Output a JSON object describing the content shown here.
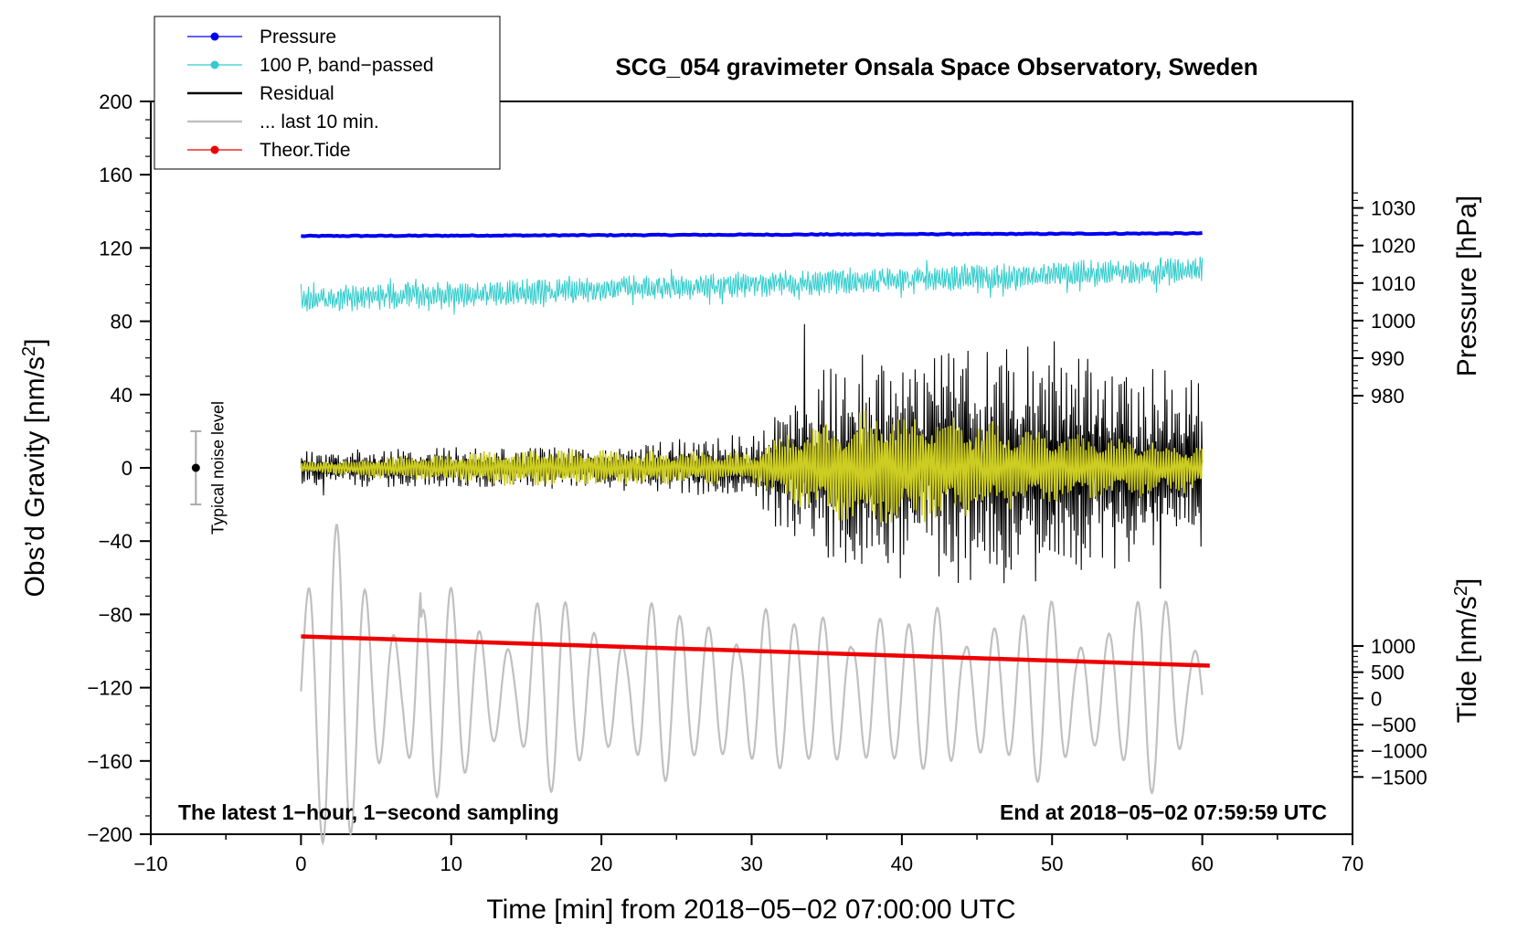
{
  "chart_data": {
    "type": "line",
    "title": "SCG_054 gravimeter Onsala Space Observatory, Sweden",
    "xlabel": "Time [min] from 2018−05−02 07:00:00 UTC",
    "ylabel_main": "Obs’d Gravity [nm/s",
    "ylabel_main_sup": "2",
    "ylabel_main_tail": "]",
    "ylabel_pressure": "Pressure [hPa]",
    "ylabel_tide": "Tide [nm/s",
    "ylabel_tide_sup": "2",
    "ylabel_tide_tail": "]",
    "xlim": [
      -10,
      70
    ],
    "ylim": [
      -200,
      200
    ],
    "x_ticks": [
      -10,
      0,
      10,
      20,
      30,
      40,
      50,
      60,
      70
    ],
    "x_tick_labels": [
      "−10",
      "0",
      "10",
      "20",
      "30",
      "40",
      "50",
      "60",
      "70"
    ],
    "y_ticks": [
      200,
      160,
      120,
      80,
      40,
      0,
      -40,
      -80,
      -120,
      -160,
      -200
    ],
    "y_tick_labels": [
      "200",
      "160",
      "120",
      "80",
      "40",
      "0",
      "−40",
      "−80",
      "−120",
      "−160",
      "−200"
    ],
    "pressure_axis": {
      "ticks": [
        1030,
        1020,
        1010,
        1000,
        990,
        980
      ],
      "tick_labels": [
        "1030",
        "1020",
        "1010",
        "1000",
        "990",
        "980"
      ],
      "value_at_gravity_0": 960.8,
      "gravity_per_hPa": 2.05
    },
    "tide_axis": {
      "ticks": [
        1000,
        500,
        0,
        -500,
        -1000,
        -1500
      ],
      "tick_labels": [
        "1000",
        "500",
        "0",
        "−500",
        "−1000",
        "−1500"
      ],
      "value_at_gravity_0": 4400,
      "gravity_per_unit": 0.0286
    },
    "legend": {
      "placement": "top-left",
      "entries": [
        {
          "label": "Pressure",
          "color": "#0000ee",
          "marker": true
        },
        {
          "label": "100 P, band−passed",
          "color": "#33cccc",
          "marker": true
        },
        {
          "label": "Residual",
          "color": "#000000",
          "marker": false
        },
        {
          "label": "... last 10 min.",
          "color": "#c0c0c0",
          "marker": false
        },
        {
          "label": "Theor.Tide",
          "color": "#ee0000",
          "marker": true
        }
      ]
    },
    "series": [
      {
        "name": "Pressure",
        "color": "#0000ee",
        "x": [
          0,
          60
        ],
        "y": [
          126.5,
          128.0
        ]
      },
      {
        "name": "100 P, band−passed",
        "color": "#33cccc",
        "x_range": [
          0,
          60
        ],
        "center_gravity": 100,
        "trend_gravity": [
          92,
          108
        ],
        "amplitude": 7
      },
      {
        "name": "Residual",
        "color": "#000000",
        "x_range": [
          0,
          60
        ],
        "center_gravity": 0,
        "envelope": [
          [
            0,
            8
          ],
          [
            10,
            10
          ],
          [
            20,
            10
          ],
          [
            30,
            16
          ],
          [
            33,
            40
          ],
          [
            37,
            55
          ],
          [
            45,
            55
          ],
          [
            50,
            60
          ],
          [
            55,
            50
          ],
          [
            60,
            40
          ]
        ]
      },
      {
        "name": "Residual (filtered)",
        "color": "#cccc22",
        "x_range": [
          0,
          60
        ],
        "center_gravity": 0,
        "envelope": [
          [
            0,
            3
          ],
          [
            10,
            8
          ],
          [
            16,
            10
          ],
          [
            30,
            8
          ],
          [
            34,
            25
          ],
          [
            38,
            30
          ],
          [
            45,
            25
          ],
          [
            50,
            18
          ],
          [
            60,
            12
          ]
        ]
      },
      {
        "name": "... last 10 min.",
        "color": "#c0c0c0",
        "x_range": [
          0,
          60
        ],
        "center_gravity": -122,
        "peak_amplitude": 80
      },
      {
        "name": "Theor.Tide",
        "color": "#ee0000",
        "x": [
          0,
          60.5
        ],
        "y": [
          -92,
          -108
        ]
      }
    ],
    "noise_bar": {
      "label": "Typical noise level",
      "x": -7,
      "center": 0,
      "half_range": 20
    },
    "annotations": {
      "bottom_left": "The latest 1−hour, 1−second sampling",
      "bottom_right": "End at 2018−05−02 07:59:59 UTC"
    }
  }
}
